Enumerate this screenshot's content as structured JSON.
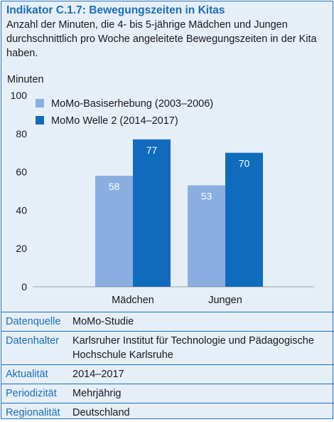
{
  "header": {
    "title": "Indikator C.1.7: Bewegungszeiten in Kitas",
    "subtitle": "Anzahl der Minuten, die 4- bis 5-jährige Mädchen und Jungen durchschnittlich pro Woche angeleitete Bewegungszeiten in der Kita haben."
  },
  "colors": {
    "series1": "#8aaee0",
    "series2": "#0f6cbd",
    "title": "#1a6fb9",
    "background": "#e6eef8"
  },
  "chart_data": {
    "type": "bar",
    "ylabel": "Minuten",
    "ylim": [
      0,
      100
    ],
    "yticks": [
      0,
      20,
      40,
      60,
      80,
      100
    ],
    "categories": [
      "Mädchen",
      "Jungen"
    ],
    "legend_placement": "top-left",
    "grid": false,
    "series": [
      {
        "name": "MoMo-Basiserhebung (2003–2006)",
        "values": [
          58,
          53
        ]
      },
      {
        "name": "MoMo Welle 2 (2014–2017)",
        "values": [
          77,
          70
        ]
      }
    ]
  },
  "meta": [
    {
      "label": "Datenquelle",
      "value": "MoMo-Studie"
    },
    {
      "label": "Datenhalter",
      "value": "Karlsruher Institut für Technologie und Pädagogische Hochschule Karlsruhe"
    },
    {
      "label": "Aktualität",
      "value": "2014–2017"
    },
    {
      "label": "Periodizität",
      "value": "Mehrjährig"
    },
    {
      "label": "Regionalität",
      "value": "Deutschland"
    }
  ]
}
